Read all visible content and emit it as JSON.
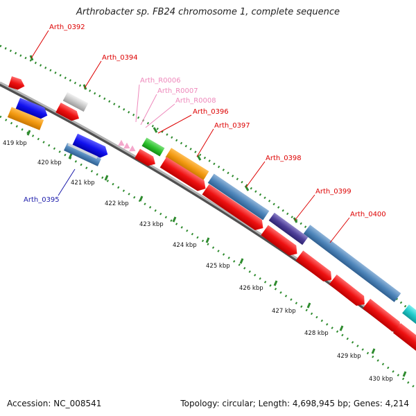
{
  "title": "Arthrobacter sp. FB24 chromosome 1, complete sequence",
  "accession_text": "Accession: NC_008541",
  "footer_text": "Topology: circular; Length: 4,698,945 bp; Genes: 4,214",
  "colors": {
    "backbone": "#808080",
    "ticks": "#2e8b2e",
    "red_label": "#dd0000",
    "pink_label": "#ee88bb",
    "blue_label": "#1a1aaa"
  },
  "scale_labels": [
    "419 kbp",
    "420 kbp",
    "421 kbp",
    "422 kbp",
    "423 kbp",
    "424 kbp",
    "425 kbp",
    "426 kbp",
    "427 kbp",
    "428 kbp",
    "429 kbp",
    "430 kbp"
  ],
  "gene_labels": [
    {
      "id": "lbl-arth-0392",
      "text": "Arth_0392",
      "color": "red"
    },
    {
      "id": "lbl-arth-0394",
      "text": "Arth_0394",
      "color": "red"
    },
    {
      "id": "lbl-arth-r0006",
      "text": "Arth_R0006",
      "color": "pink"
    },
    {
      "id": "lbl-arth-r0007",
      "text": "Arth_R0007",
      "color": "pink"
    },
    {
      "id": "lbl-arth-r0008",
      "text": "Arth_R0008",
      "color": "pink"
    },
    {
      "id": "lbl-arth-0396",
      "text": "Arth_0396",
      "color": "red"
    },
    {
      "id": "lbl-arth-0397",
      "text": "Arth_0397",
      "color": "red"
    },
    {
      "id": "lbl-arth-0398",
      "text": "Arth_0398",
      "color": "red"
    },
    {
      "id": "lbl-arth-0399",
      "text": "Arth_0399",
      "color": "red"
    },
    {
      "id": "lbl-arth-0400",
      "text": "Arth_0400",
      "color": "red"
    },
    {
      "id": "lbl-arth-0395",
      "text": "Arth_0395",
      "color": "blue"
    }
  ]
}
